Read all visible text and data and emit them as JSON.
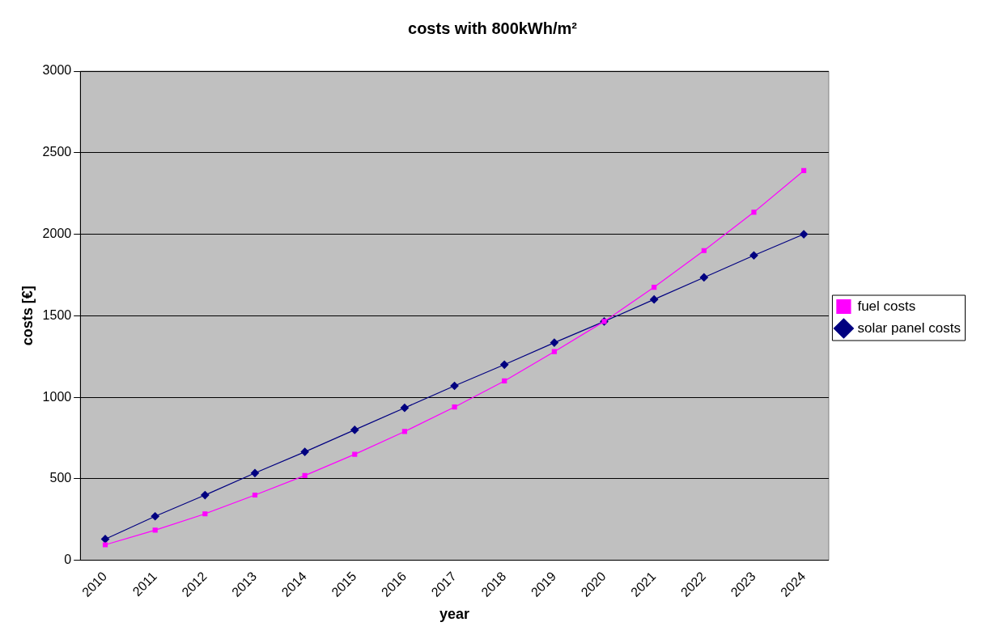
{
  "chart_data": {
    "type": "line",
    "title": "costs with 800kWh/m²",
    "xlabel": "year",
    "ylabel": "costs [€]",
    "categories": [
      "2010",
      "2011",
      "2012",
      "2013",
      "2014",
      "2015",
      "2016",
      "2017",
      "2018",
      "2019",
      "2020",
      "2021",
      "2022",
      "2023",
      "2024"
    ],
    "series": [
      {
        "name": "solar panel costs",
        "color": "#000080",
        "marker": "diamond",
        "values": [
          130,
          270,
          400,
          535,
          665,
          800,
          935,
          1070,
          1200,
          1335,
          1465,
          1600,
          1735,
          1870,
          2000
        ]
      },
      {
        "name": "fuel costs",
        "color": "#ff00ff",
        "marker": "square",
        "values": [
          95,
          185,
          285,
          400,
          520,
          650,
          790,
          940,
          1100,
          1280,
          1465,
          1675,
          1900,
          2135,
          2390
        ]
      }
    ],
    "ylim": [
      0,
      3000
    ],
    "yticks": [
      0,
      500,
      1000,
      1500,
      2000,
      2500,
      3000
    ],
    "grid": "y",
    "legend": "right",
    "line_style": "solid"
  }
}
